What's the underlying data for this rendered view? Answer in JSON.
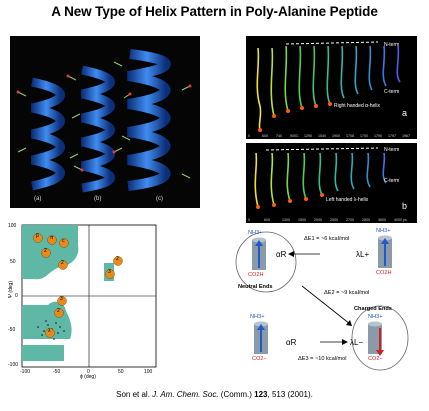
{
  "title": "A New Type of Helix Pattern in Poly-Alanine Peptide",
  "helix_panel": {
    "labels": [
      "(a)",
      "(b)",
      "(c)"
    ]
  },
  "simulation_a": {
    "top_label": "N-term",
    "bottom_label": "C-term",
    "caption": "Right handed α-helix",
    "panel_letter": "a",
    "ticks": [
      "0",
      "600",
      "740",
      "900C",
      "1290",
      "1540",
      "1900",
      "1708",
      "1700",
      "1790",
      "1797",
      "1967"
    ]
  },
  "simulation_b": {
    "top_label": "N-term",
    "bottom_label": "C-term",
    "caption": "Left handed λ-helix",
    "panel_letter": "b",
    "ticks": [
      "0",
      "600",
      "1300",
      "1500",
      "2000",
      "2500",
      "2700",
      "2800",
      "3600",
      "4000 ps"
    ]
  },
  "ramachandran": {
    "y_axis_label": "Ψ (deg)",
    "x_axis_label": "ϕ (deg)",
    "y_ticks": [
      "100",
      "50",
      "0",
      "-50",
      "-100"
    ],
    "x_ticks": [
      "-100",
      "-50",
      "0",
      "50",
      "100"
    ],
    "region_labels": [
      "β",
      "π",
      "c",
      "2",
      "2",
      "3",
      "2",
      "3",
      "2",
      "λ"
    ]
  },
  "scheme": {
    "nh3": "NH3+",
    "co2h": "CO2H",
    "co2": "CO2−",
    "alpha_r": "αR",
    "lambda_l": "λL+",
    "lambda_l2": "λL−",
    "de1": "ΔE1 = ~6 kcal/mol",
    "de2": "ΔE2 = ~9 kcal/mol",
    "de3": "ΔE3 = ~10 kcal/mol",
    "neutral": "Neutral Ends",
    "charged": "Charged Ends"
  },
  "citation": {
    "authors": "Son et al.",
    "journal": "J. Am. Chem. Soc.",
    "tail": "(Comm.)",
    "volume": "123",
    "pages": ", 513 (2001)."
  },
  "colors": {
    "helix_blue": "#2b6ed6",
    "teal_region": "#5fb7a6",
    "orange_marker": "#e88a1a"
  }
}
